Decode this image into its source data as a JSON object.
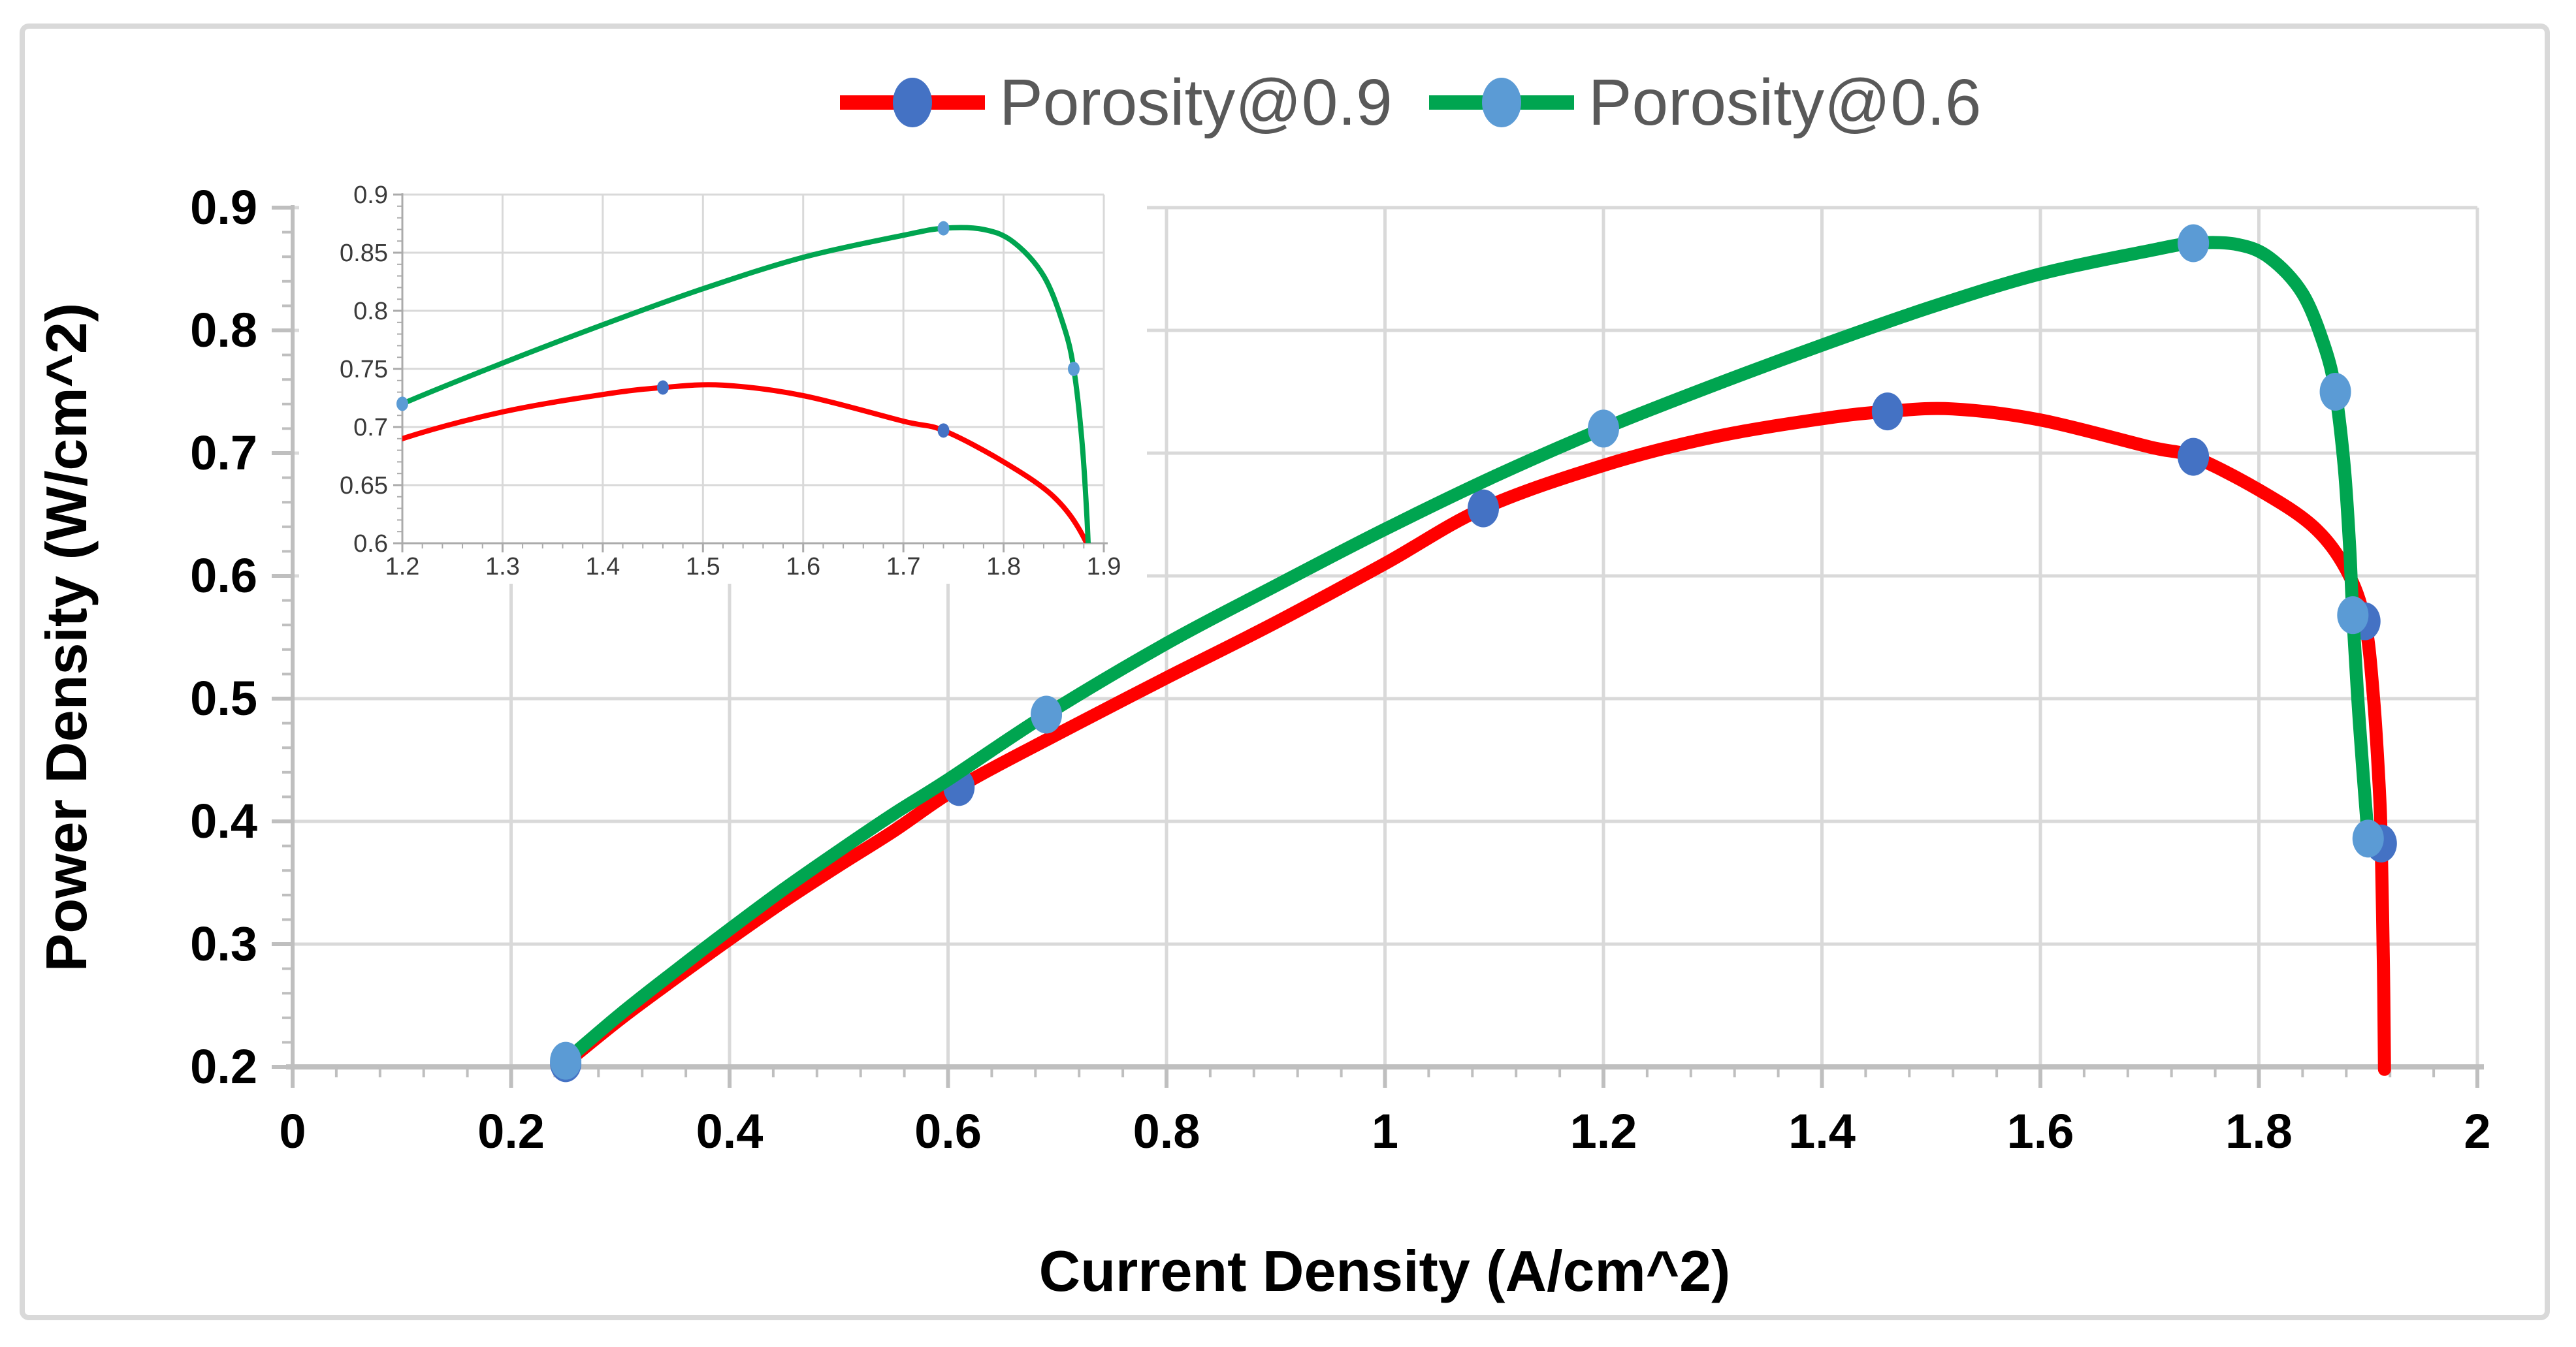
{
  "legend": {
    "items": [
      {
        "label": "Porosity@0.9",
        "line_color": "#FF0000",
        "marker_color": "#4472C4"
      },
      {
        "label": "Porosity@0.6",
        "line_color": "#00A550",
        "marker_color": "#5B9BD5"
      }
    ]
  },
  "axes": {
    "x_title": "Current Density (A/cm^2)",
    "y_title": "Power Density (W/cm^2)"
  },
  "colors": {
    "gridline": "#D9D9D9",
    "axis_line": "#BFBFBF",
    "tick_label": "#000000",
    "inset_axis": "#ABABAB",
    "inset_label": "#3a3a3a",
    "border": "#D9D9D9",
    "background": "#ffffff"
  },
  "chart_data": {
    "type": "line",
    "title": "",
    "xlabel": "Current Density (A/cm^2)",
    "ylabel": "Power Density (W/cm^2)",
    "xlim": [
      0,
      2
    ],
    "ylim": [
      0.2,
      0.9
    ],
    "x_major_step": 0.2,
    "x_minor_step": 0.04,
    "y_major_step": 0.1,
    "y_minor_step": 0.02,
    "grid": true,
    "legend_position": "top-center",
    "x_tick_labels": [
      "0",
      "0.2",
      "0.4",
      "0.6",
      "0.8",
      "1",
      "1.2",
      "1.4",
      "1.6",
      "1.8",
      "2"
    ],
    "y_tick_labels": [
      "0.2",
      "0.3",
      "0.4",
      "0.5",
      "0.6",
      "0.7",
      "0.8",
      "0.9"
    ],
    "series": [
      {
        "name": "Porosity@0.9",
        "color": "#FF0000",
        "marker_color": "#4472C4",
        "points": [
          [
            0.25,
            0.203
          ],
          [
            0.3,
            0.239
          ],
          [
            0.35,
            0.272
          ],
          [
            0.4,
            0.304
          ],
          [
            0.45,
            0.335
          ],
          [
            0.5,
            0.364
          ],
          [
            0.55,
            0.392
          ],
          [
            0.61,
            0.428
          ],
          [
            0.7,
            0.471
          ],
          [
            0.8,
            0.517
          ],
          [
            0.9,
            0.562
          ],
          [
            1.0,
            0.61
          ],
          [
            1.09,
            0.655
          ],
          [
            1.2,
            0.69
          ],
          [
            1.3,
            0.713
          ],
          [
            1.4,
            0.728
          ],
          [
            1.46,
            0.734
          ],
          [
            1.52,
            0.736
          ],
          [
            1.6,
            0.727
          ],
          [
            1.7,
            0.705
          ],
          [
            1.74,
            0.697
          ],
          [
            1.8,
            0.67
          ],
          [
            1.85,
            0.64
          ],
          [
            1.88,
            0.605
          ],
          [
            1.897,
            0.563
          ],
          [
            1.905,
            0.5
          ],
          [
            1.91,
            0.43
          ],
          [
            1.912,
            0.382
          ],
          [
            1.914,
            0.28
          ],
          [
            1.915,
            0.198
          ]
        ],
        "markers": [
          [
            0.25,
            0.203
          ],
          [
            0.61,
            0.428
          ],
          [
            1.09,
            0.655
          ],
          [
            1.46,
            0.734
          ],
          [
            1.74,
            0.697
          ],
          [
            1.897,
            0.563
          ],
          [
            1.912,
            0.382
          ]
        ]
      },
      {
        "name": "Porosity@0.6",
        "color": "#00A550",
        "marker_color": "#5B9BD5",
        "points": [
          [
            0.25,
            0.205
          ],
          [
            0.3,
            0.243
          ],
          [
            0.35,
            0.278
          ],
          [
            0.4,
            0.312
          ],
          [
            0.45,
            0.345
          ],
          [
            0.5,
            0.376
          ],
          [
            0.55,
            0.406
          ],
          [
            0.6,
            0.434
          ],
          [
            0.69,
            0.487
          ],
          [
            0.8,
            0.545
          ],
          [
            0.9,
            0.592
          ],
          [
            1.0,
            0.638
          ],
          [
            1.1,
            0.681
          ],
          [
            1.2,
            0.72
          ],
          [
            1.3,
            0.755
          ],
          [
            1.4,
            0.788
          ],
          [
            1.5,
            0.819
          ],
          [
            1.6,
            0.846
          ],
          [
            1.7,
            0.865
          ],
          [
            1.74,
            0.871
          ],
          [
            1.78,
            0.87
          ],
          [
            1.81,
            0.859
          ],
          [
            1.84,
            0.83
          ],
          [
            1.86,
            0.787
          ],
          [
            1.87,
            0.75
          ],
          [
            1.878,
            0.69
          ],
          [
            1.883,
            0.625
          ],
          [
            1.886,
            0.568
          ],
          [
            1.892,
            0.48
          ],
          [
            1.9,
            0.386
          ]
        ],
        "markers": [
          [
            0.25,
            0.205
          ],
          [
            0.69,
            0.487
          ],
          [
            1.2,
            0.72
          ],
          [
            1.74,
            0.871
          ],
          [
            1.87,
            0.75
          ],
          [
            1.886,
            0.568
          ],
          [
            1.9,
            0.386
          ]
        ]
      }
    ],
    "inset": {
      "xlim": [
        1.2,
        1.9
      ],
      "ylim": [
        0.6,
        0.9
      ],
      "x_major_step": 0.1,
      "x_minor_step": 0.02,
      "y_major_step": 0.05,
      "y_minor_step": 0.01,
      "x_tick_labels": [
        "1.2",
        "1.3",
        "1.4",
        "1.5",
        "1.6",
        "1.7",
        "1.8",
        "1.9"
      ],
      "y_tick_labels": [
        "0.6",
        "0.65",
        "0.7",
        "0.75",
        "0.8",
        "0.85",
        "0.9"
      ],
      "series_markers": [
        [
          [
            1.46,
            0.734
          ],
          [
            1.74,
            0.697
          ]
        ],
        [
          [
            1.2,
            0.72
          ],
          [
            1.74,
            0.871
          ],
          [
            1.87,
            0.75
          ]
        ]
      ]
    }
  }
}
